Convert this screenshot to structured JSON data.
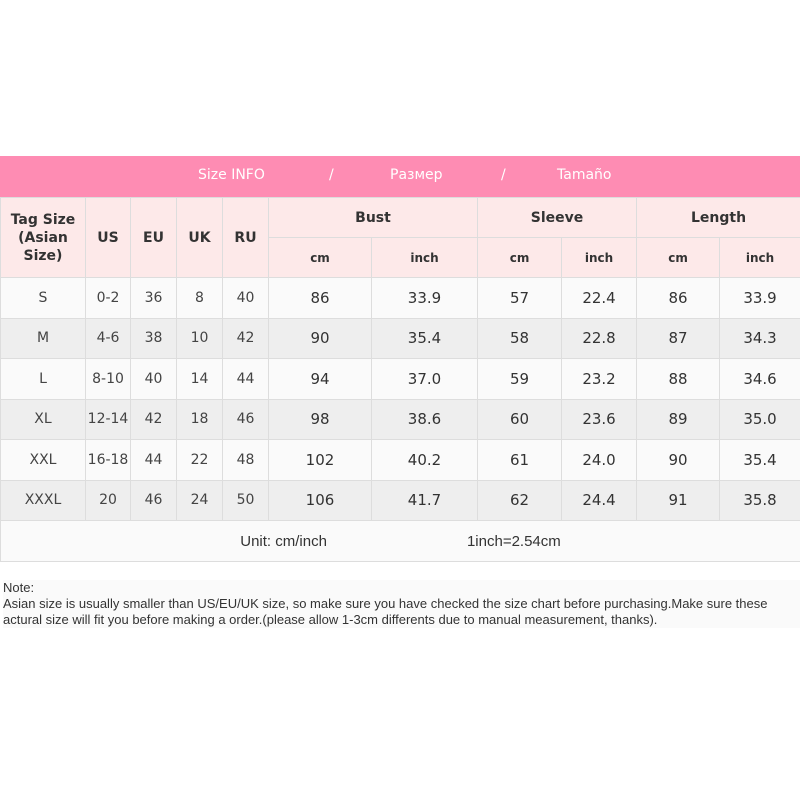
{
  "banner": {
    "title1": "Size INFO",
    "sep1": "/",
    "title2": "Размер",
    "sep2": "/",
    "title3": "Tamaño"
  },
  "headers": {
    "tag": "Tag Size",
    "tag2": "(Asian Size)",
    "us": "US",
    "eu": "EU",
    "uk": "UK",
    "ru": "RU",
    "bust": "Bust",
    "sleeve": "Sleeve",
    "length": "Length",
    "cm": "cm",
    "inch": "inch"
  },
  "rows": [
    [
      "S",
      "0-2",
      "36",
      "8",
      "40",
      "86",
      "33.9",
      "57",
      "22.4",
      "86",
      "33.9"
    ],
    [
      "M",
      "4-6",
      "38",
      "10",
      "42",
      "90",
      "35.4",
      "58",
      "22.8",
      "87",
      "34.3"
    ],
    [
      "L",
      "8-10",
      "40",
      "14",
      "44",
      "94",
      "37.0",
      "59",
      "23.2",
      "88",
      "34.6"
    ],
    [
      "XL",
      "12-14",
      "42",
      "18",
      "46",
      "98",
      "38.6",
      "60",
      "23.6",
      "89",
      "35.0"
    ],
    [
      "XXL",
      "16-18",
      "44",
      "22",
      "48",
      "102",
      "40.2",
      "61",
      "24.0",
      "90",
      "35.4"
    ],
    [
      "XXXL",
      "20",
      "46",
      "24",
      "50",
      "106",
      "41.7",
      "62",
      "24.4",
      "91",
      "35.8"
    ]
  ],
  "unit": {
    "label": "Unit: cm/inch",
    "conversion": "1inch=2.54cm"
  },
  "note": {
    "title": "Note:",
    "text": "Asian size is usually smaller than US/EU/UK size, so make sure you have checked the size chart before purchasing.Make sure these actural size will fit you before making a order.(please allow 1-3cm differents due to manual measurement, thanks)."
  },
  "colors": {
    "banner": "#fe8cb3",
    "header": "#fde9e9"
  }
}
